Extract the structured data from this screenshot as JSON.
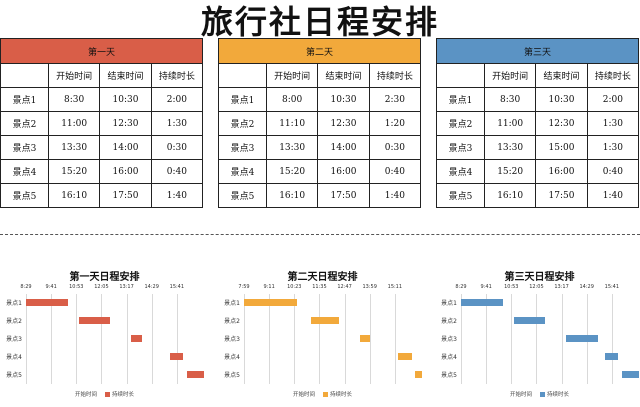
{
  "title": "旅行社日程安排",
  "columns": [
    "",
    "开始时间",
    "结束时间",
    "持续时长"
  ],
  "days": [
    {
      "name": "第一天",
      "color": "#D95E48",
      "rows": [
        [
          "景点1",
          "8:30",
          "10:30",
          "2:00"
        ],
        [
          "景点2",
          "11:00",
          "12:30",
          "1:30"
        ],
        [
          "景点3",
          "13:30",
          "14:00",
          "0:30"
        ],
        [
          "景点4",
          "15:20",
          "16:00",
          "0:40"
        ],
        [
          "景点5",
          "16:10",
          "17:50",
          "1:40"
        ]
      ]
    },
    {
      "name": "第二天",
      "color": "#F2A93B",
      "rows": [
        [
          "景点1",
          "8:00",
          "10:30",
          "2:30"
        ],
        [
          "景点2",
          "11:10",
          "12:30",
          "1:20"
        ],
        [
          "景点3",
          "13:30",
          "14:00",
          "0:30"
        ],
        [
          "景点4",
          "15:20",
          "16:00",
          "0:40"
        ],
        [
          "景点5",
          "16:10",
          "17:50",
          "1:40"
        ]
      ]
    },
    {
      "name": "第三天",
      "color": "#5B93C4",
      "rows": [
        [
          "景点1",
          "8:30",
          "10:30",
          "2:00"
        ],
        [
          "景点2",
          "11:00",
          "12:30",
          "1:30"
        ],
        [
          "景点3",
          "13:30",
          "15:00",
          "1:30"
        ],
        [
          "景点4",
          "15:20",
          "16:00",
          "0:40"
        ],
        [
          "景点5",
          "16:10",
          "17:50",
          "1:40"
        ]
      ]
    }
  ],
  "chart_data": [
    {
      "type": "bar",
      "title": "第一天日程安排",
      "ticks": [
        "8:29",
        "9:41",
        "10:53",
        "12:05",
        "13:17",
        "14:29",
        "15:41"
      ],
      "categories": [
        "景点1",
        "景点2",
        "景点3",
        "景点4",
        "景点5"
      ],
      "series": [
        {
          "name": "开始时间",
          "values": [
            "8:30",
            "11:00",
            "13:30",
            "15:20",
            "16:10"
          ]
        },
        {
          "name": "持续时长",
          "values": [
            "2:00",
            "1:30",
            "0:30",
            "0:40",
            "1:40"
          ]
        }
      ],
      "xlim": [
        "8:29",
        "16:53"
      ]
    },
    {
      "type": "bar",
      "title": "第二天日程安排",
      "ticks": [
        "7:59",
        "9:11",
        "10:23",
        "11:35",
        "12:47",
        "13:59",
        "15:11"
      ],
      "categories": [
        "景点1",
        "景点2",
        "景点3",
        "景点4",
        "景点5"
      ],
      "series": [
        {
          "name": "开始时间",
          "values": [
            "8:00",
            "11:10",
            "13:30",
            "15:20",
            "16:10"
          ]
        },
        {
          "name": "持续时长",
          "values": [
            "2:30",
            "1:20",
            "0:30",
            "0:40",
            "1:40"
          ]
        }
      ],
      "xlim": [
        "7:59",
        "16:23"
      ]
    },
    {
      "type": "bar",
      "title": "第三天日程安排",
      "ticks": [
        "8:29",
        "9:41",
        "10:53",
        "12:05",
        "13:17",
        "14:29",
        "15:41"
      ],
      "categories": [
        "景点1",
        "景点2",
        "景点3",
        "景点4",
        "景点5"
      ],
      "series": [
        {
          "name": "开始时间",
          "values": [
            "8:30",
            "11:00",
            "13:30",
            "15:20",
            "16:10"
          ]
        },
        {
          "name": "持续时长",
          "values": [
            "2:00",
            "1:30",
            "1:30",
            "0:40",
            "1:40"
          ]
        }
      ],
      "xlim": [
        "8:29",
        "16:53"
      ]
    }
  ]
}
